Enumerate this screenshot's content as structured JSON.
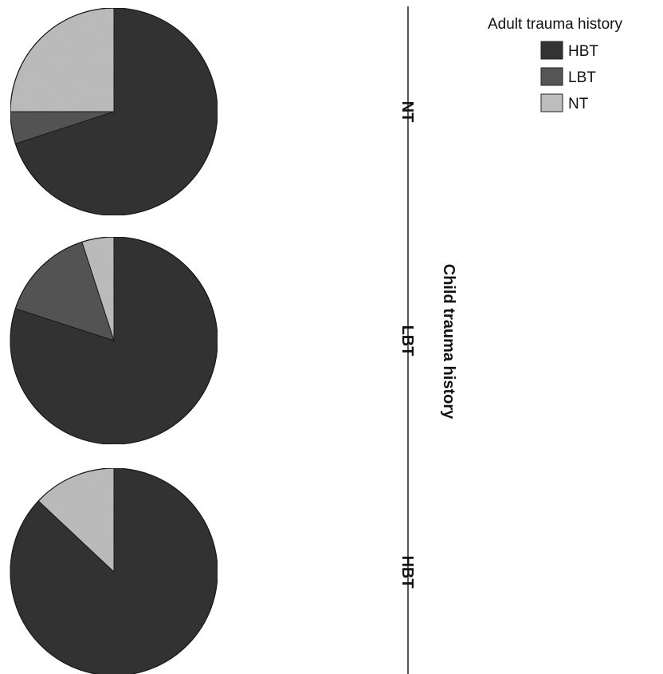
{
  "chart_data": {
    "type": "pie",
    "facet_title": "Child trauma history",
    "legend": {
      "title": "Adult trauma history",
      "placement": "top-right",
      "entries": [
        {
          "name": "HBT",
          "color": "#333333"
        },
        {
          "name": "LBT",
          "color": "#555555"
        },
        {
          "name": "NT",
          "color": "#bdbdbd"
        }
      ]
    },
    "categories": [
      "HBT",
      "LBT",
      "NT"
    ],
    "colors": [
      "#333333",
      "#555555",
      "#bdbdbd"
    ],
    "pies": [
      {
        "label": "NT",
        "values": [
          70,
          5,
          25
        ]
      },
      {
        "label": "LBT",
        "values": [
          80,
          15,
          5
        ]
      },
      {
        "label": "HBT",
        "values": [
          87,
          0,
          13
        ]
      }
    ]
  }
}
